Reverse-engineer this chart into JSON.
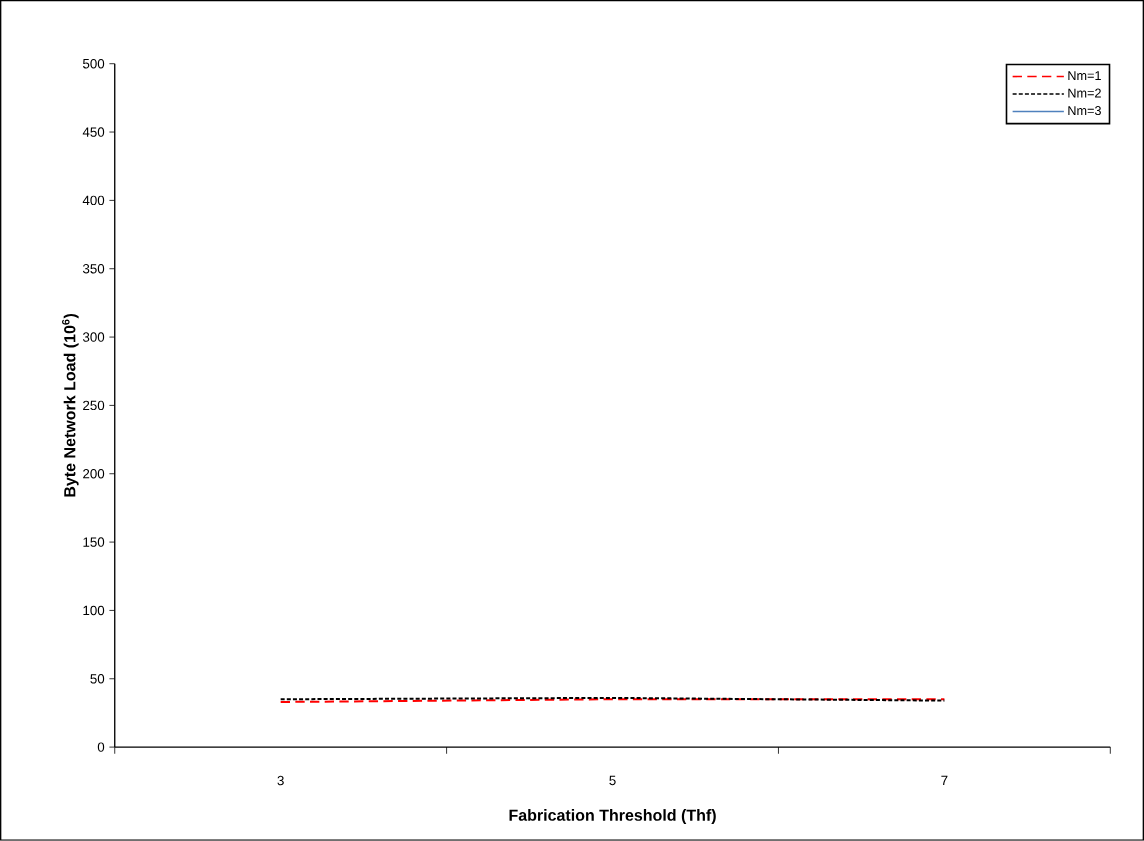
{
  "chart_data": {
    "type": "line",
    "xlabel": "Fabrication Threshold (Thf)",
    "ylabel": "Byte Network Load (10$^{6}$)",
    "categories": [
      "3",
      "5",
      "7"
    ],
    "series": [
      {
        "name": "Nm=1",
        "color": "#ff0000",
        "line_style": "dashed",
        "values": [
          33,
          35,
          35
        ]
      },
      {
        "name": "Nm=2",
        "color": "#000000",
        "line_style": "dotted",
        "values": [
          35,
          36,
          34
        ]
      },
      {
        "name": "Nm=3",
        "color": "#4f81bd",
        "line_style": "solid",
        "values": [
          null,
          null,
          null
        ]
      }
    ],
    "ylim": [
      0,
      500
    ],
    "yticks": [
      0,
      50,
      100,
      150,
      200,
      250,
      300,
      350,
      400,
      450,
      500
    ],
    "grid": false,
    "legend": "top right",
    "marker": "none"
  }
}
